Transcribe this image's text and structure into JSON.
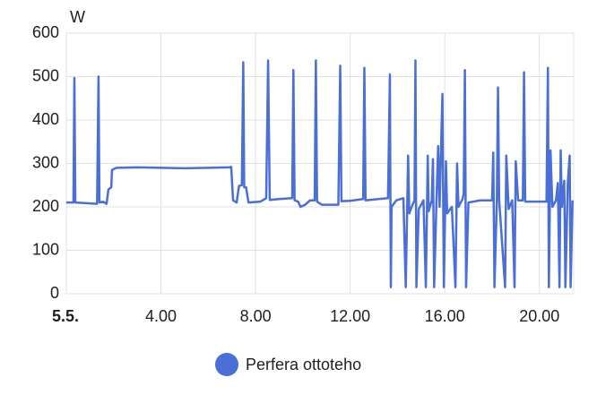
{
  "chart_data": {
    "type": "line",
    "y_label": "W",
    "x": [
      0,
      0.3,
      0.34,
      0.38,
      1.0,
      1.3,
      1.36,
      1.4,
      1.55,
      1.7,
      1.78,
      1.9,
      1.93,
      2.12,
      3.0,
      4.0,
      5.0,
      6.0,
      6.9,
      6.97,
      7.05,
      7.2,
      7.3,
      7.42,
      7.48,
      7.52,
      7.6,
      7.7,
      8.2,
      8.45,
      8.53,
      8.6,
      9.0,
      9.55,
      9.6,
      9.65,
      9.8,
      9.9,
      10.1,
      10.3,
      10.5,
      10.55,
      10.6,
      10.8,
      11.5,
      11.58,
      11.63,
      12.0,
      12.55,
      12.6,
      12.65,
      13.2,
      13.6,
      13.68,
      13.7,
      13.72,
      13.75,
      13.95,
      14.25,
      14.35,
      14.45,
      14.5,
      14.6,
      14.72,
      14.76,
      14.8,
      14.9,
      15.1,
      15.2,
      15.28,
      15.32,
      15.45,
      15.5,
      15.55,
      15.65,
      15.72,
      15.78,
      15.9,
      15.96,
      16.05,
      16.1,
      16.3,
      16.45,
      16.52,
      16.58,
      16.75,
      16.8,
      16.85,
      16.9,
      17.0,
      17.5,
      18.0,
      18.05,
      18.1,
      18.2,
      18.25,
      18.3,
      18.55,
      18.6,
      18.7,
      18.85,
      18.95,
      19.0,
      19.1,
      19.3,
      19.35,
      19.4,
      20.0,
      20.3,
      20.36,
      20.4,
      20.47,
      20.55,
      20.7,
      20.78,
      20.85,
      20.9,
      20.95,
      21.05,
      21.1,
      21.2,
      21.28,
      21.32,
      21.4
    ],
    "series": [
      {
        "name": "Perfera ottoteho",
        "color": "#4a6fd6",
        "values": [
          210,
          210,
          497,
          210,
          208,
          207,
          500,
          210,
          212,
          207,
          240,
          245,
          285,
          290,
          291,
          290,
          289,
          290,
          291,
          292,
          215,
          210,
          248,
          250,
          533,
          245,
          245,
          210,
          212,
          220,
          537,
          216,
          218,
          220,
          515,
          215,
          212,
          200,
          205,
          215,
          215,
          537,
          212,
          205,
          205,
          525,
          213,
          214,
          218,
          520,
          215,
          218,
          220,
          505,
          230,
          15,
          200,
          215,
          220,
          15,
          318,
          185,
          200,
          215,
          537,
          15,
          195,
          215,
          15,
          318,
          190,
          215,
          310,
          15,
          215,
          340,
          200,
          460,
          15,
          305,
          185,
          200,
          15,
          300,
          200,
          218,
          230,
          515,
          15,
          210,
          215,
          215,
          325,
          15,
          210,
          475,
          215,
          15,
          318,
          195,
          215,
          15,
          305,
          215,
          215,
          510,
          212,
          212,
          212,
          520,
          15,
          330,
          200,
          215,
          255,
          15,
          330,
          200,
          260,
          15,
          255,
          318,
          15,
          215
        ]
      }
    ],
    "xlim": [
      0,
      21.45
    ],
    "xticks": [
      {
        "value": 0,
        "label": "5.5."
      },
      {
        "value": 4,
        "label": "4.00"
      },
      {
        "value": 8,
        "label": "8.00"
      },
      {
        "value": 12,
        "label": "12.00"
      },
      {
        "value": 16,
        "label": "16.00"
      },
      {
        "value": 20,
        "label": "20.00"
      }
    ],
    "ylim": [
      0,
      600
    ],
    "yticks": [
      0,
      100,
      200,
      300,
      400,
      500,
      600
    ],
    "grid": true,
    "legend": "bottom"
  }
}
